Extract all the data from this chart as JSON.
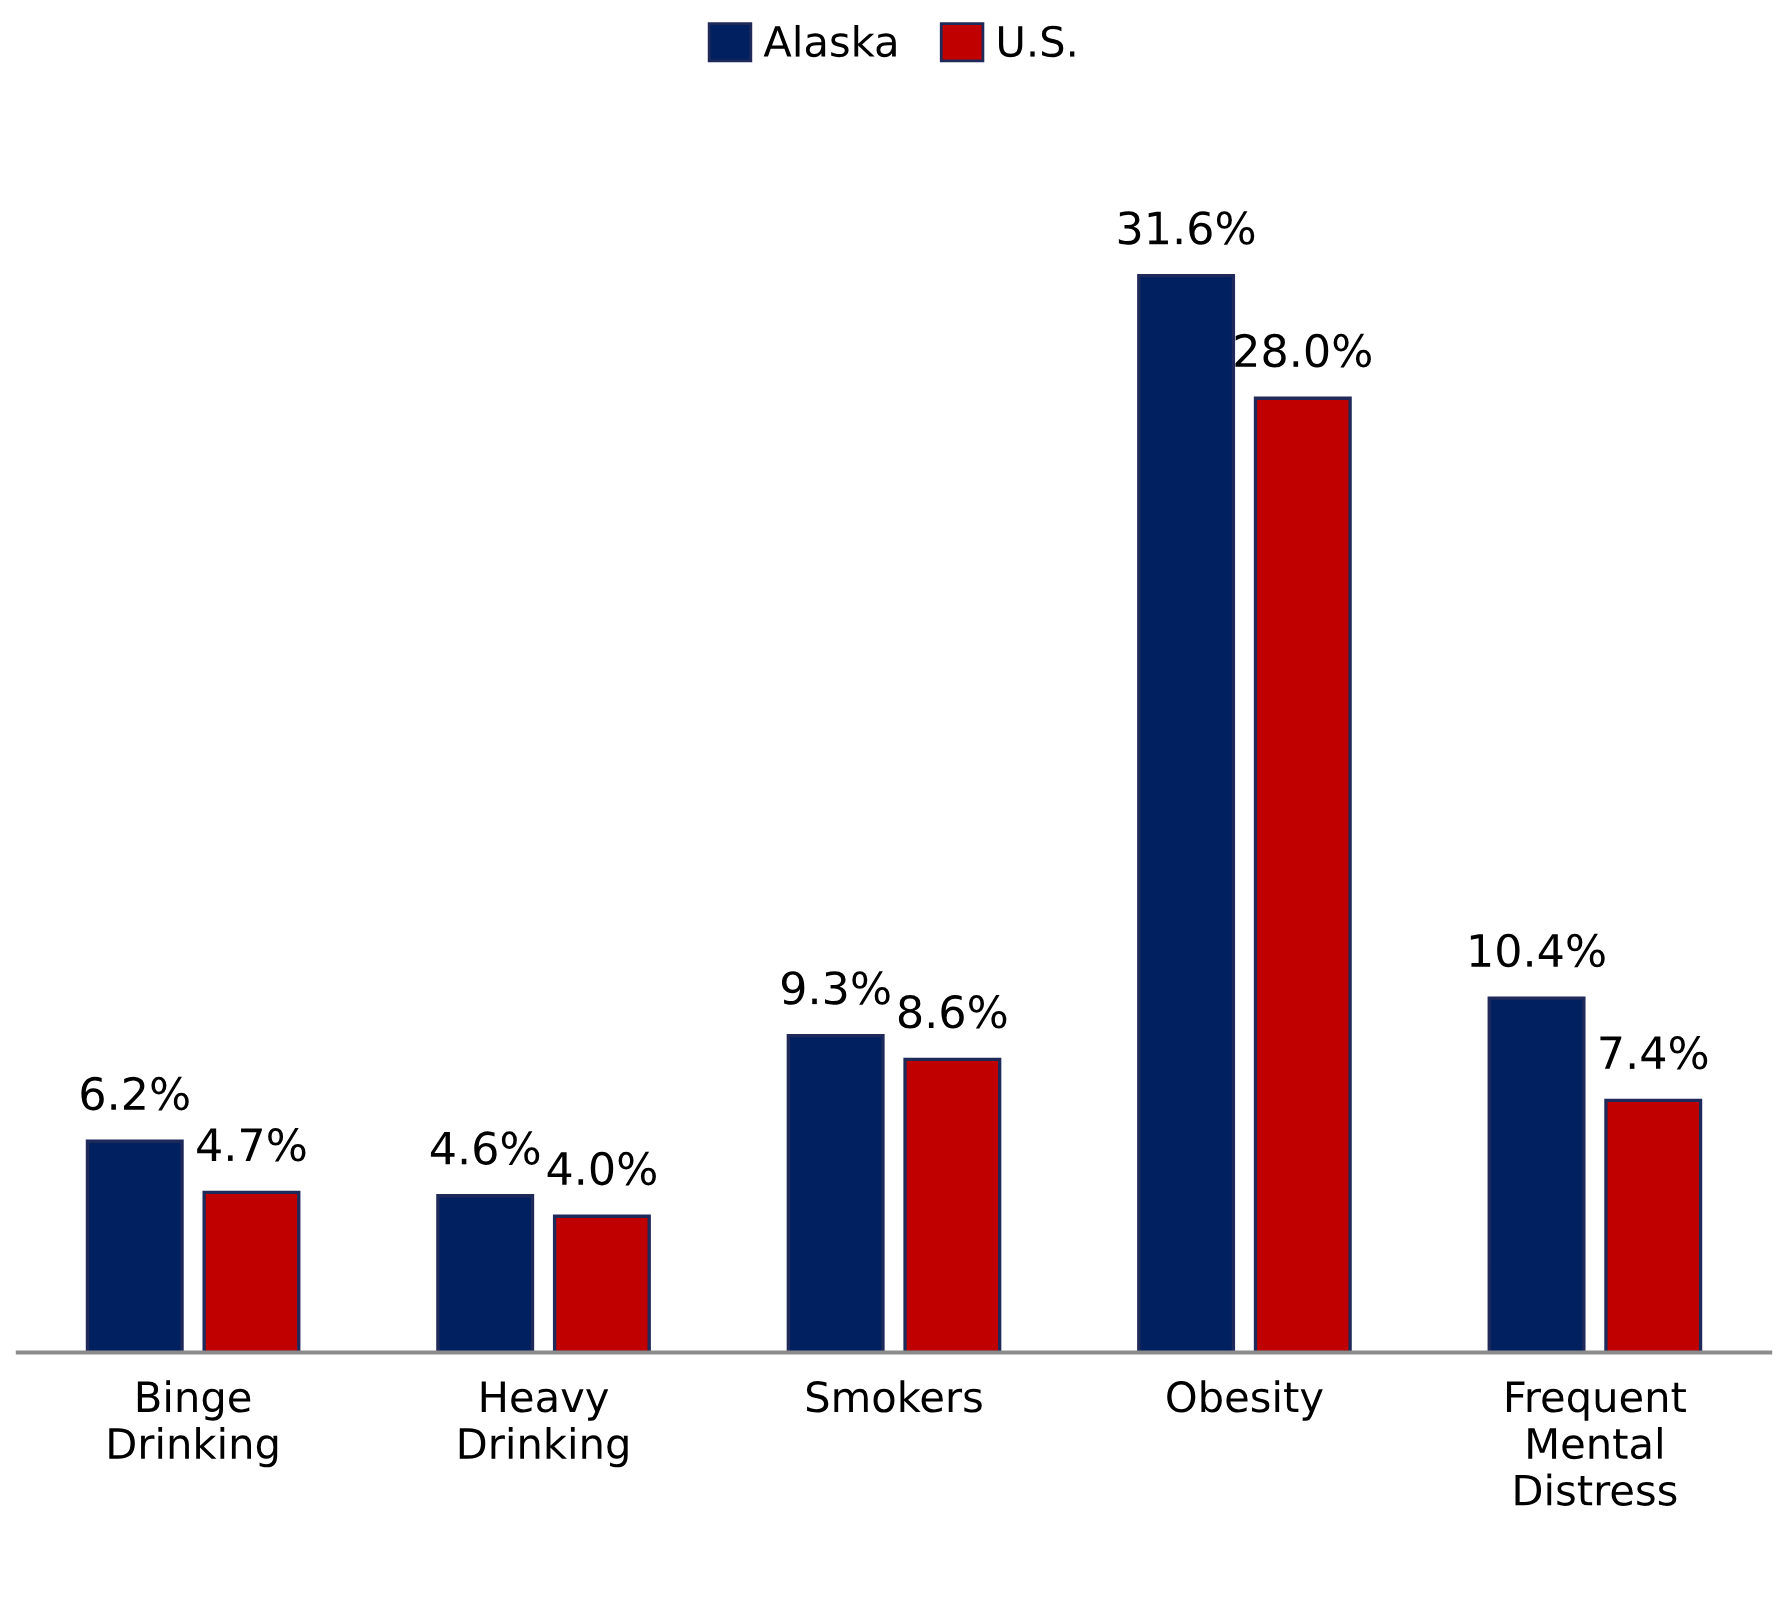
{
  "chart_data": {
    "type": "bar",
    "categories": [
      "Binge\nDrinking",
      "Heavy\nDrinking",
      "Smokers",
      "Obesity",
      "Frequent\nMental\nDistress"
    ],
    "series": [
      {
        "name": "Alaska",
        "color": "#002060",
        "values": [
          6.2,
          4.6,
          9.3,
          31.6,
          10.4
        ],
        "value_labels": [
          "6.2%",
          "4.6%",
          "9.3%",
          "31.6%",
          "10.4%"
        ]
      },
      {
        "name": "U.S.",
        "color": "#c00000",
        "values": [
          4.7,
          4.0,
          8.6,
          28.0,
          7.4
        ],
        "value_labels": [
          "4.7%",
          "4.0%",
          "8.6%",
          "28.0%",
          "7.4%"
        ]
      }
    ],
    "legend": "top",
    "grid": false,
    "tick_labels": "x"
  }
}
